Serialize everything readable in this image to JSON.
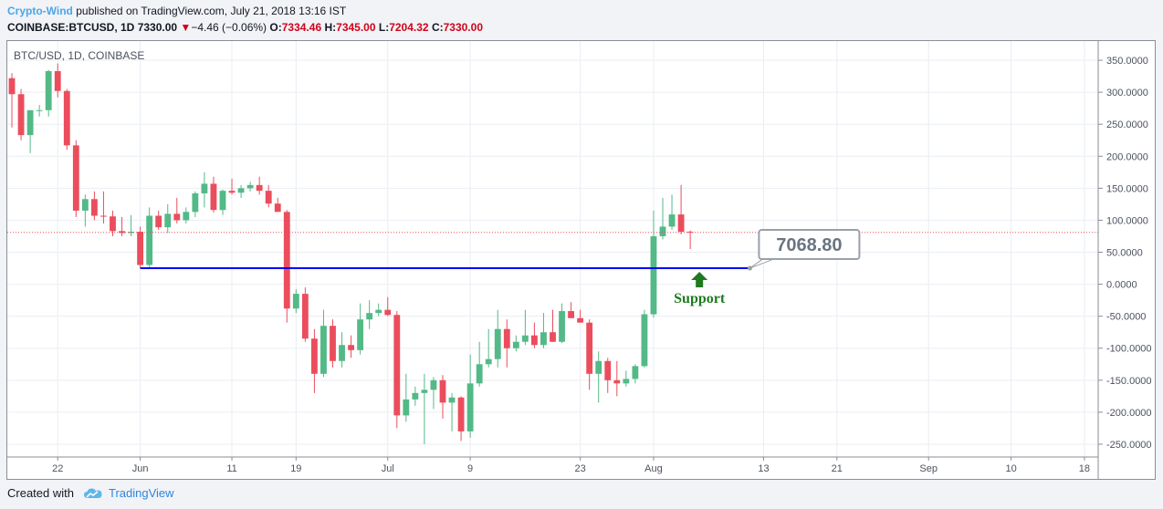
{
  "header": {
    "author": "Crypto-Wind",
    "published_text": "published on TradingView.com, July 21, 2018 13:16 IST"
  },
  "quote": {
    "symbol": "COINBASE:BTCUSD, 1D",
    "last": "7330.00",
    "change_arrow": "▼",
    "change": "−4.46 (−0.06%)",
    "o_label": "O:",
    "o_value": "7334.46",
    "h_label": "H:",
    "h_value": "7345.00",
    "l_label": "L:",
    "l_value": "7204.32",
    "c_label": "C:",
    "c_value": "7330.00"
  },
  "footer": {
    "created_with": "Created with",
    "brand": "TradingView",
    "logo_icon": "tradingview-cloud-icon"
  },
  "colors": {
    "up": "#53b987",
    "down": "#eb4d5c",
    "support_line": "#0000ff",
    "support_label": "#1f7a1f",
    "grid": "#e9edf2",
    "price_line": "#eb4d5c"
  },
  "chart_data": {
    "type": "candlestick",
    "legend": "BTC/USD, 1D, COINBASE",
    "grid": true,
    "y_axis": {
      "ticks": [
        350,
        300,
        250,
        200,
        150,
        100,
        50,
        0,
        -50,
        -100,
        -150,
        -200,
        -250
      ],
      "tick_labels": [
        "350.0000",
        "300.0000",
        "250.0000",
        "200.0000",
        "150.0000",
        "100.0000",
        "50.0000",
        "0.0000",
        "-50.0000",
        "-100.0000",
        "-150.0000",
        "-200.0000",
        "-250.0000"
      ],
      "range": [
        -270,
        380
      ]
    },
    "x_axis": {
      "tick_labels": [
        "22",
        "Jun",
        "11",
        "19",
        "Jul",
        "9",
        "23",
        "Aug",
        "13",
        "21",
        "Sep",
        "10",
        "18"
      ],
      "tick_index": [
        5,
        14,
        24,
        31,
        41,
        50,
        62,
        70,
        82,
        90,
        100,
        109,
        117
      ],
      "range": [
        -0.5,
        118.5
      ]
    },
    "candles": [
      {
        "o": 322,
        "h": 330,
        "l": 245,
        "c": 297
      },
      {
        "o": 297,
        "h": 305,
        "l": 225,
        "c": 233
      },
      {
        "o": 233,
        "h": 270,
        "l": 205,
        "c": 272
      },
      {
        "o": 272,
        "h": 280,
        "l": 262,
        "c": 272
      },
      {
        "o": 272,
        "h": 335,
        "l": 262,
        "c": 333
      },
      {
        "o": 333,
        "h": 345,
        "l": 292,
        "c": 302
      },
      {
        "o": 302,
        "h": 305,
        "l": 210,
        "c": 217
      },
      {
        "o": 217,
        "h": 225,
        "l": 105,
        "c": 115
      },
      {
        "o": 115,
        "h": 140,
        "l": 90,
        "c": 133
      },
      {
        "o": 133,
        "h": 145,
        "l": 100,
        "c": 107
      },
      {
        "o": 107,
        "h": 145,
        "l": 95,
        "c": 106
      },
      {
        "o": 106,
        "h": 115,
        "l": 75,
        "c": 83
      },
      {
        "o": 83,
        "h": 105,
        "l": 75,
        "c": 80
      },
      {
        "o": 80,
        "h": 108,
        "l": 75,
        "c": 82
      },
      {
        "o": 82,
        "h": 90,
        "l": 25,
        "c": 30
      },
      {
        "o": 30,
        "h": 120,
        "l": 25,
        "c": 107
      },
      {
        "o": 107,
        "h": 115,
        "l": 85,
        "c": 89
      },
      {
        "o": 89,
        "h": 125,
        "l": 80,
        "c": 110
      },
      {
        "o": 110,
        "h": 135,
        "l": 95,
        "c": 100
      },
      {
        "o": 100,
        "h": 120,
        "l": 95,
        "c": 113
      },
      {
        "o": 113,
        "h": 145,
        "l": 105,
        "c": 142
      },
      {
        "o": 142,
        "h": 175,
        "l": 120,
        "c": 157
      },
      {
        "o": 157,
        "h": 168,
        "l": 112,
        "c": 116
      },
      {
        "o": 116,
        "h": 148,
        "l": 108,
        "c": 146
      },
      {
        "o": 146,
        "h": 165,
        "l": 140,
        "c": 143
      },
      {
        "o": 143,
        "h": 155,
        "l": 135,
        "c": 150
      },
      {
        "o": 150,
        "h": 160,
        "l": 145,
        "c": 155
      },
      {
        "o": 155,
        "h": 168,
        "l": 140,
        "c": 146
      },
      {
        "o": 146,
        "h": 155,
        "l": 120,
        "c": 126
      },
      {
        "o": 126,
        "h": 135,
        "l": 118,
        "c": 113
      },
      {
        "o": 113,
        "h": 116,
        "l": -60,
        "c": -38
      },
      {
        "o": -38,
        "h": -8,
        "l": -45,
        "c": -15
      },
      {
        "o": -15,
        "h": -5,
        "l": -90,
        "c": -85
      },
      {
        "o": -85,
        "h": -70,
        "l": -170,
        "c": -140
      },
      {
        "o": -140,
        "h": -40,
        "l": -145,
        "c": -65
      },
      {
        "o": -65,
        "h": -55,
        "l": -130,
        "c": -120
      },
      {
        "o": -120,
        "h": -75,
        "l": -130,
        "c": -95
      },
      {
        "o": -95,
        "h": -80,
        "l": -115,
        "c": -103
      },
      {
        "o": -103,
        "h": -30,
        "l": -110,
        "c": -55
      },
      {
        "o": -55,
        "h": -25,
        "l": -70,
        "c": -45
      },
      {
        "o": -45,
        "h": -30,
        "l": -50,
        "c": -40
      },
      {
        "o": -40,
        "h": -20,
        "l": -50,
        "c": -48
      },
      {
        "o": -48,
        "h": -42,
        "l": -225,
        "c": -205
      },
      {
        "o": -205,
        "h": -140,
        "l": -215,
        "c": -180
      },
      {
        "o": -180,
        "h": -160,
        "l": -190,
        "c": -170
      },
      {
        "o": -170,
        "h": -140,
        "l": -250,
        "c": -165
      },
      {
        "o": -165,
        "h": -145,
        "l": -195,
        "c": -150
      },
      {
        "o": -150,
        "h": -142,
        "l": -210,
        "c": -185
      },
      {
        "o": -185,
        "h": -170,
        "l": -230,
        "c": -177
      },
      {
        "o": -177,
        "h": -175,
        "l": -245,
        "c": -230
      },
      {
        "o": -230,
        "h": -110,
        "l": -240,
        "c": -155
      },
      {
        "o": -155,
        "h": -90,
        "l": -160,
        "c": -125
      },
      {
        "o": -125,
        "h": -70,
        "l": -130,
        "c": -117
      },
      {
        "o": -117,
        "h": -40,
        "l": -130,
        "c": -70
      },
      {
        "o": -70,
        "h": -55,
        "l": -130,
        "c": -100
      },
      {
        "o": -100,
        "h": -80,
        "l": -105,
        "c": -90
      },
      {
        "o": -90,
        "h": -40,
        "l": -95,
        "c": -80
      },
      {
        "o": -80,
        "h": -60,
        "l": -100,
        "c": -95
      },
      {
        "o": -95,
        "h": -45,
        "l": -100,
        "c": -75
      },
      {
        "o": -75,
        "h": -40,
        "l": -90,
        "c": -90
      },
      {
        "o": -90,
        "h": -30,
        "l": -92,
        "c": -42
      },
      {
        "o": -42,
        "h": -28,
        "l": -50,
        "c": -53
      },
      {
        "o": -53,
        "h": -40,
        "l": -60,
        "c": -60
      },
      {
        "o": -60,
        "h": -55,
        "l": -165,
        "c": -140
      },
      {
        "o": -140,
        "h": -105,
        "l": -185,
        "c": -120
      },
      {
        "o": -120,
        "h": -115,
        "l": -170,
        "c": -150
      },
      {
        "o": -150,
        "h": -120,
        "l": -175,
        "c": -155
      },
      {
        "o": -155,
        "h": -135,
        "l": -160,
        "c": -148
      },
      {
        "o": -148,
        "h": -125,
        "l": -155,
        "c": -128
      },
      {
        "o": -128,
        "h": -40,
        "l": -130,
        "c": -47
      },
      {
        "o": -47,
        "h": 115,
        "l": -52,
        "c": 75
      },
      {
        "o": 75,
        "h": 135,
        "l": 70,
        "c": 90
      },
      {
        "o": 90,
        "h": 140,
        "l": 85,
        "c": 109
      },
      {
        "o": 109,
        "h": 155,
        "l": 78,
        "c": 82
      },
      {
        "o": 82,
        "h": 84,
        "l": 55,
        "c": 81
      }
    ],
    "price_line": 81,
    "support": {
      "label": "Support",
      "price_label": "7068.80",
      "level": 25
    }
  }
}
